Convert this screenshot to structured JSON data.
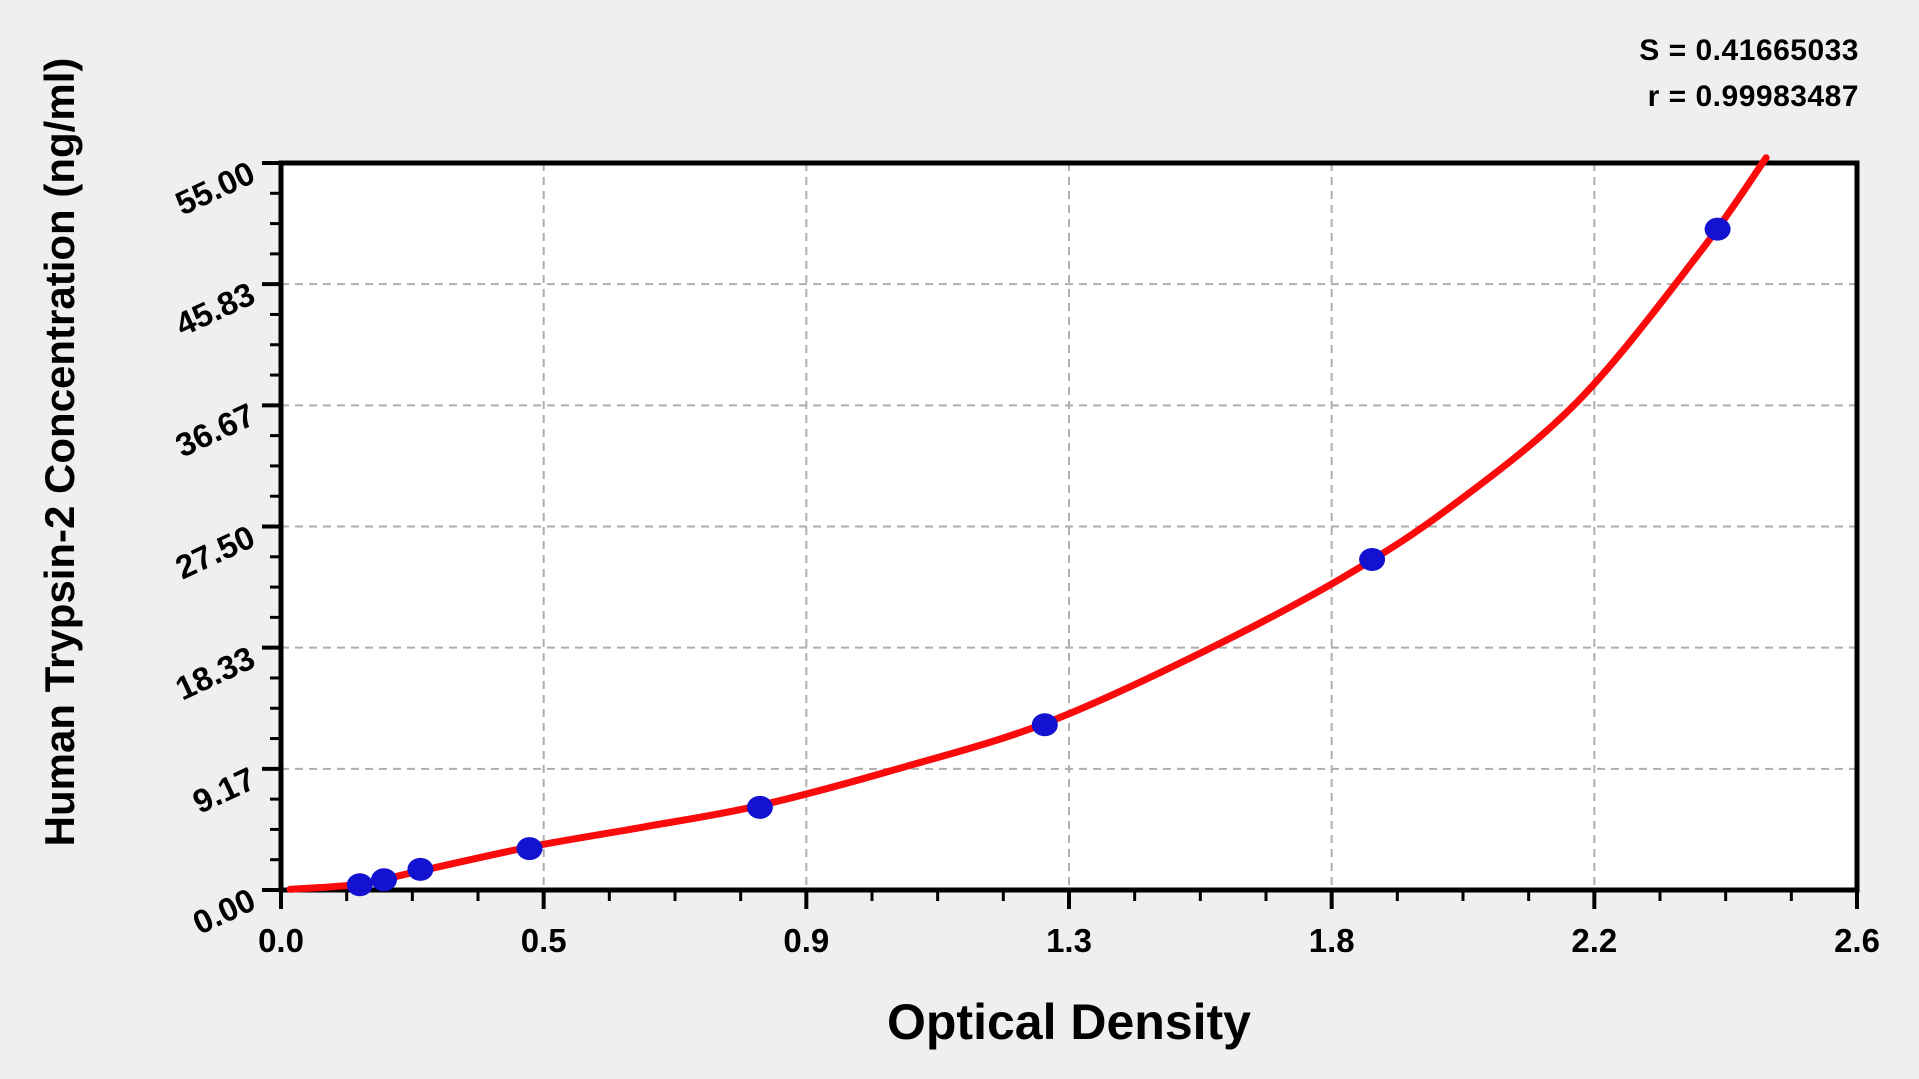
{
  "stats": {
    "s_line": "S = 0.41665033",
    "r_line": "r = 0.99983487"
  },
  "chart_data": {
    "type": "scatter",
    "title": "",
    "xlabel": "Optical Density",
    "ylabel": "Human Trypsin-2 Concentration (ng/ml)",
    "xlim": [
      0,
      2.6
    ],
    "ylim": [
      0,
      55
    ],
    "x_tick_labels": [
      "0.0",
      "0.5",
      "0.9",
      "1.3",
      "1.8",
      "2.2",
      "2.6"
    ],
    "y_tick_labels": [
      "0.00",
      "9.17",
      "18.33",
      "27.50",
      "36.67",
      "45.83",
      "55.00"
    ],
    "minor_ticks_per_interval": 3,
    "grid": "dashed gray lines at every major tick, plot area white with black border",
    "legend_position": "none",
    "series": [
      {
        "name": "standard-points",
        "points_od_conc": [
          [
            0.13,
            0.39
          ],
          [
            0.17,
            0.78
          ],
          [
            0.23,
            1.56
          ],
          [
            0.41,
            3.13
          ],
          [
            0.79,
            6.25
          ],
          [
            1.26,
            12.5
          ],
          [
            1.8,
            25.0
          ],
          [
            2.37,
            50.0
          ]
        ]
      },
      {
        "name": "fitted-curve",
        "curve_samples_od_conc": [
          [
            0.015,
            0.05
          ],
          [
            0.13,
            0.45
          ],
          [
            0.23,
            1.45
          ],
          [
            0.41,
            3.25
          ],
          [
            0.59,
            4.7
          ],
          [
            0.79,
            6.4
          ],
          [
            1.02,
            9.2
          ],
          [
            1.26,
            12.6
          ],
          [
            1.52,
            18.0
          ],
          [
            1.75,
            23.6
          ],
          [
            1.93,
            29.0
          ],
          [
            2.14,
            37.0
          ],
          [
            2.34,
            48.2
          ],
          [
            2.45,
            55.4
          ]
        ]
      }
    ],
    "annotations": [
      "S = 0.41665033",
      "r = 0.99983487"
    ],
    "colors": {
      "curve": "#fa0a0a",
      "points": "#1212d0",
      "grid": "#aeaeae",
      "axis": "#000000",
      "background": "#efefef",
      "plot_background": "#ffffff",
      "text": "#000000"
    }
  }
}
